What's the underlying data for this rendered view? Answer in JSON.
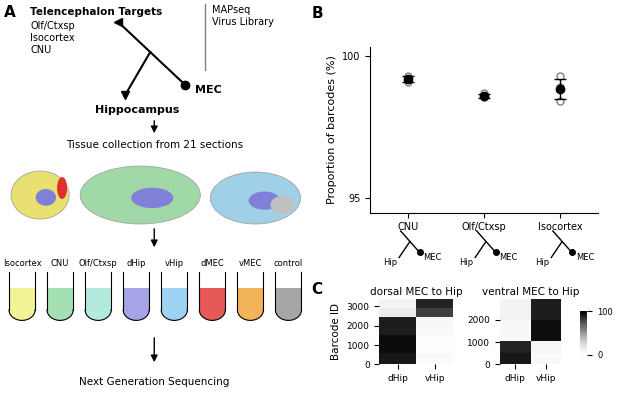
{
  "figure_labels": [
    "A",
    "B",
    "C"
  ],
  "diagram": {
    "targets_header": "Telencephalon Targets",
    "targets": [
      "Olf/Ctxsp",
      "Isocortex",
      "CNU"
    ],
    "injection": [
      "MAPseq",
      "Virus Library"
    ],
    "source": "MEC",
    "hippocampus": "Hippocampus",
    "steps": [
      "Tissue collection from 21 sections",
      "Next Generation Sequencing"
    ],
    "tubes": [
      {
        "label": "Isocortex",
        "color": "#eef07a"
      },
      {
        "label": "CNU",
        "color": "#8fd9a0"
      },
      {
        "label": "Olf/Ctxsp",
        "color": "#9fe6d6"
      },
      {
        "label": "dHip",
        "color": "#8e8ee0"
      },
      {
        "label": "vHip",
        "color": "#86c8f0"
      },
      {
        "label": "dMEC",
        "color": "#e03030"
      },
      {
        "label": "vMEC",
        "color": "#f0a030"
      },
      {
        "label": "control",
        "color": "#909090"
      }
    ]
  },
  "chart_data": [
    {
      "type": "scatter",
      "categories": [
        "CNU",
        "Olf/Ctxsp",
        "Isocortex"
      ],
      "y_label": "Proportion of barcodes (%)",
      "ylim": [
        94.5,
        100.3
      ],
      "yticks": [
        95,
        100
      ],
      "values": [
        99.2,
        98.6,
        98.85
      ],
      "error": [
        0.1,
        0.08,
        0.35
      ],
      "points": [
        [
          99.1,
          99.3,
          99.2
        ],
        [
          98.55,
          98.6,
          98.7
        ],
        [
          99.3,
          98.9,
          98.4
        ]
      ],
      "diagram_labels": [
        "Hip",
        "MEC"
      ],
      "color": "#000000"
    },
    {
      "type": "heatmap",
      "title": "dorsal MEC to Hip",
      "categories": [
        "dHip",
        "vHip"
      ],
      "y_label": "Barcode ID",
      "ylim": [
        0,
        3350
      ],
      "yticks": [
        0,
        1000,
        2000,
        3000
      ],
      "cells": [
        {
          "rows": [
            0,
            600
          ],
          "values": [
            92,
            4
          ]
        },
        {
          "rows": [
            600,
            1500
          ],
          "values": [
            96,
            2
          ]
        },
        {
          "rows": [
            1500,
            2450
          ],
          "values": [
            90,
            6
          ]
        },
        {
          "rows": [
            2450,
            2900
          ],
          "values": [
            15,
            80
          ]
        },
        {
          "rows": [
            2900,
            3350
          ],
          "values": [
            10,
            88
          ]
        }
      ]
    },
    {
      "type": "heatmap",
      "title": "ventral MEC to Hip",
      "categories": [
        "dHip",
        "vHip"
      ],
      "ylim": [
        0,
        2900
      ],
      "yticks": [
        0,
        1000,
        2000
      ],
      "cells": [
        {
          "rows": [
            0,
            500
          ],
          "values": [
            92,
            5
          ]
        },
        {
          "rows": [
            500,
            1050
          ],
          "values": [
            88,
            8
          ]
        },
        {
          "rows": [
            1050,
            2000
          ],
          "values": [
            6,
            95
          ]
        },
        {
          "rows": [
            2000,
            2900
          ],
          "values": [
            10,
            90
          ]
        }
      ],
      "colorbar": {
        "range": [
          0,
          100
        ],
        "ticks": [
          0,
          100
        ]
      }
    }
  ]
}
